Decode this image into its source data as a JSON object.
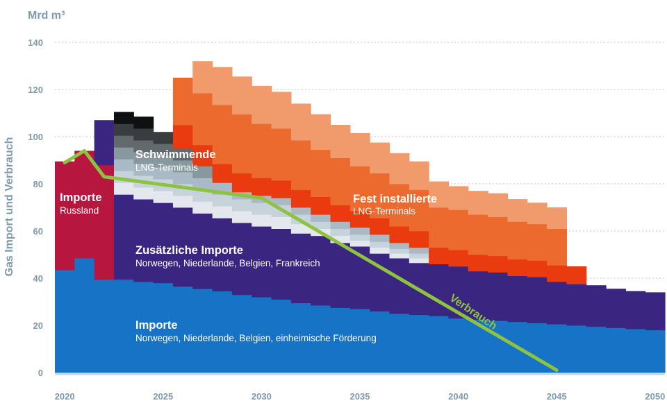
{
  "chart_data": {
    "type": "area",
    "unit": "Mrd m³",
    "ylabel": "Gas Import und Verbrauch",
    "ylim": [
      0,
      140
    ],
    "yticks": [
      0,
      20,
      40,
      60,
      80,
      100,
      120,
      140
    ],
    "x_ticks": [
      2020,
      2025,
      2030,
      2035,
      2040,
      2045,
      2050
    ],
    "grid": true,
    "x": [
      2020,
      2021,
      2022,
      2023,
      2024,
      2025,
      2026,
      2027,
      2028,
      2029,
      2030,
      2031,
      2032,
      2033,
      2034,
      2035,
      2036,
      2037,
      2038,
      2039,
      2040,
      2041,
      2042,
      2043,
      2044,
      2045,
      2046,
      2047,
      2048,
      2049,
      2050
    ],
    "series": [
      {
        "key": "domestic",
        "color": "#1673c6",
        "values": [
          43.5,
          48.5,
          39.5,
          39.5,
          38.5,
          38,
          36.5,
          35.5,
          34.5,
          33,
          32,
          31,
          29.5,
          28.5,
          27.5,
          27,
          26,
          25,
          24.5,
          24,
          23,
          22.5,
          22,
          21.5,
          21,
          20.5,
          20,
          19.5,
          19,
          18.5,
          18
        ]
      },
      {
        "key": "russia",
        "color": "#b7173f",
        "values": [
          46,
          45.5,
          48.5,
          0,
          0,
          0,
          0,
          0,
          0,
          0,
          0,
          0,
          0,
          0,
          0,
          0,
          0,
          0,
          0,
          0,
          0,
          0,
          0,
          0,
          0,
          0,
          0,
          0,
          0,
          0,
          0
        ]
      },
      {
        "key": "additional",
        "color": "#3a2680",
        "values": [
          0,
          0,
          19,
          36,
          35,
          34,
          33.5,
          32,
          31,
          30.5,
          30,
          30,
          29.5,
          29.5,
          27.5,
          26.5,
          24.5,
          23.5,
          22,
          22,
          22,
          20.5,
          20.5,
          19.5,
          19.5,
          18,
          17.5,
          17.5,
          16.5,
          16,
          16
        ]
      },
      {
        "key": "floating_1",
        "color": "#e4e8ee",
        "values": [
          0,
          0,
          0,
          5,
          5,
          5,
          5,
          5,
          5,
          5,
          5,
          5,
          4,
          3,
          3,
          2.5,
          2.5,
          2,
          2,
          0,
          0,
          0,
          0,
          0,
          0,
          0,
          0,
          0,
          0,
          0,
          0
        ]
      },
      {
        "key": "floating_2",
        "color": "#c7d3db",
        "values": [
          0,
          0,
          0,
          5,
          5,
          5,
          5,
          5,
          5,
          5,
          5,
          5,
          4,
          3,
          3,
          2.5,
          2.5,
          2,
          2,
          0,
          0,
          0,
          0,
          0,
          0,
          0,
          0,
          0,
          0,
          0,
          0
        ]
      },
      {
        "key": "floating_3",
        "color": "#a9bac6",
        "values": [
          0,
          0,
          0,
          5,
          5,
          5,
          5,
          5,
          5,
          3,
          3,
          3,
          3,
          3,
          3,
          3,
          3,
          2.5,
          2.5,
          0,
          0,
          0,
          0,
          0,
          0,
          0,
          0,
          0,
          0,
          0,
          0
        ]
      },
      {
        "key": "floating_4",
        "color": "#87999f",
        "values": [
          0,
          0,
          0,
          5,
          5,
          5,
          5,
          5,
          0,
          0,
          0,
          0,
          0,
          0,
          0,
          0,
          0,
          0,
          0,
          0,
          0,
          0,
          0,
          0,
          0,
          0,
          0,
          0,
          0,
          0,
          0
        ]
      },
      {
        "key": "floating_5",
        "color": "#626a6d",
        "values": [
          0,
          0,
          0,
          5,
          5,
          5,
          5,
          0,
          0,
          0,
          0,
          0,
          0,
          0,
          0,
          0,
          0,
          0,
          0,
          0,
          0,
          0,
          0,
          0,
          0,
          0,
          0,
          0,
          0,
          0,
          0
        ]
      },
      {
        "key": "floating_6",
        "color": "#3a3d3f",
        "values": [
          0,
          0,
          0,
          5,
          5,
          5,
          0,
          0,
          0,
          0,
          0,
          0,
          0,
          0,
          0,
          0,
          0,
          0,
          0,
          0,
          0,
          0,
          0,
          0,
          0,
          0,
          0,
          0,
          0,
          0,
          0
        ]
      },
      {
        "key": "floating_7",
        "color": "#0f1011",
        "values": [
          0,
          0,
          0,
          5,
          5,
          0,
          0,
          0,
          0,
          0,
          0,
          0,
          0,
          0,
          0,
          0,
          0,
          0,
          0,
          0,
          0,
          0,
          0,
          0,
          0,
          0,
          0,
          0,
          0,
          0,
          0
        ]
      },
      {
        "key": "fixed_1",
        "color": "#ea3a10",
        "values": [
          0,
          0,
          0,
          0,
          0,
          0,
          10,
          9,
          8,
          8,
          7.5,
          7.5,
          7.5,
          7.5,
          7,
          7,
          7,
          7,
          7,
          7,
          7,
          7,
          7,
          7,
          7,
          7,
          7.5,
          0,
          0,
          0,
          0
        ]
      },
      {
        "key": "fixed_2",
        "color": "#ec6a2e",
        "values": [
          0,
          0,
          0,
          0,
          0,
          0,
          20,
          22,
          25,
          25,
          23,
          22,
          21,
          20,
          20,
          19,
          19,
          18,
          17.5,
          17,
          17,
          17,
          16.5,
          16,
          15.5,
          15.5,
          0,
          0,
          0,
          0,
          0
        ]
      },
      {
        "key": "fixed_3",
        "color": "#f19a6c",
        "values": [
          0,
          0,
          0,
          0,
          0,
          0,
          0,
          13.5,
          16,
          16,
          16,
          15.5,
          15.5,
          15,
          14,
          14,
          13,
          13,
          12,
          11,
          10,
          10,
          10,
          9.5,
          9,
          9,
          0,
          0,
          0,
          0,
          0
        ]
      }
    ],
    "consumption": {
      "name": "Verbrauch",
      "color": "#8dc33f",
      "points": [
        [
          2020,
          89
        ],
        [
          2021,
          94
        ],
        [
          2022,
          83
        ],
        [
          2030,
          74
        ],
        [
          2045,
          1
        ]
      ]
    },
    "labels": {
      "imports_russia": {
        "title": "Importe",
        "sub": "Russland"
      },
      "floating": {
        "title": "Schwimmende",
        "sub": "LNG-Terminals"
      },
      "fixed": {
        "title": "Fest installierte",
        "sub": "LNG-Terminals"
      },
      "additional": {
        "title": "Zusätzliche Importe",
        "sub": "Norwegen, Niederlande, Belgien, Frankreich"
      },
      "domestic": {
        "title": "Importe",
        "sub": "Norwegen, Niederlande, Belgien, einheimische Förderung"
      },
      "verbrauch": "Verbrauch"
    }
  }
}
